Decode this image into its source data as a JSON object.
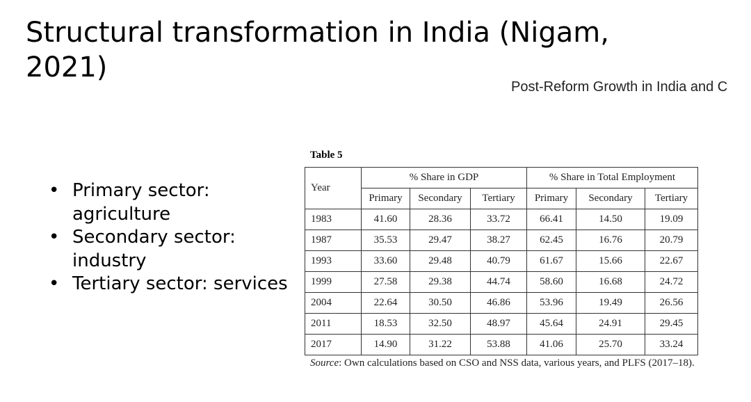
{
  "title": "Structural transformation in India (Nigam, 2021)",
  "header_right": "Post-Reform Growth in India and C",
  "bullets": [
    "Primary sector: agriculture",
    "Secondary sector: industry",
    "Tertiary sector: services"
  ],
  "table": {
    "caption": "Table 5",
    "year_header": "Year",
    "groups": [
      "% Share in GDP",
      "% Share in Total Employment"
    ],
    "subheaders": [
      "Primary",
      "Secondary",
      "Tertiary",
      "Primary",
      "Secondary",
      "Tertiary"
    ],
    "rows": [
      [
        "1983",
        "41.60",
        "28.36",
        "33.72",
        "66.41",
        "14.50",
        "19.09"
      ],
      [
        "1987",
        "35.53",
        "29.47",
        "38.27",
        "62.45",
        "16.76",
        "20.79"
      ],
      [
        "1993",
        "33.60",
        "29.48",
        "40.79",
        "61.67",
        "15.66",
        "22.67"
      ],
      [
        "1999",
        "27.58",
        "29.38",
        "44.74",
        "58.60",
        "16.68",
        "24.72"
      ],
      [
        "2004",
        "22.64",
        "30.50",
        "46.86",
        "53.96",
        "19.49",
        "26.56"
      ],
      [
        "2011",
        "18.53",
        "32.50",
        "48.97",
        "45.64",
        "24.91",
        "29.45"
      ],
      [
        "2017",
        "14.90",
        "31.22",
        "53.88",
        "41.06",
        "25.70",
        "33.24"
      ]
    ],
    "source_label": "Source",
    "source_text": ": Own calculations based on CSO and NSS data, various years, and PLFS (2017–18)."
  }
}
